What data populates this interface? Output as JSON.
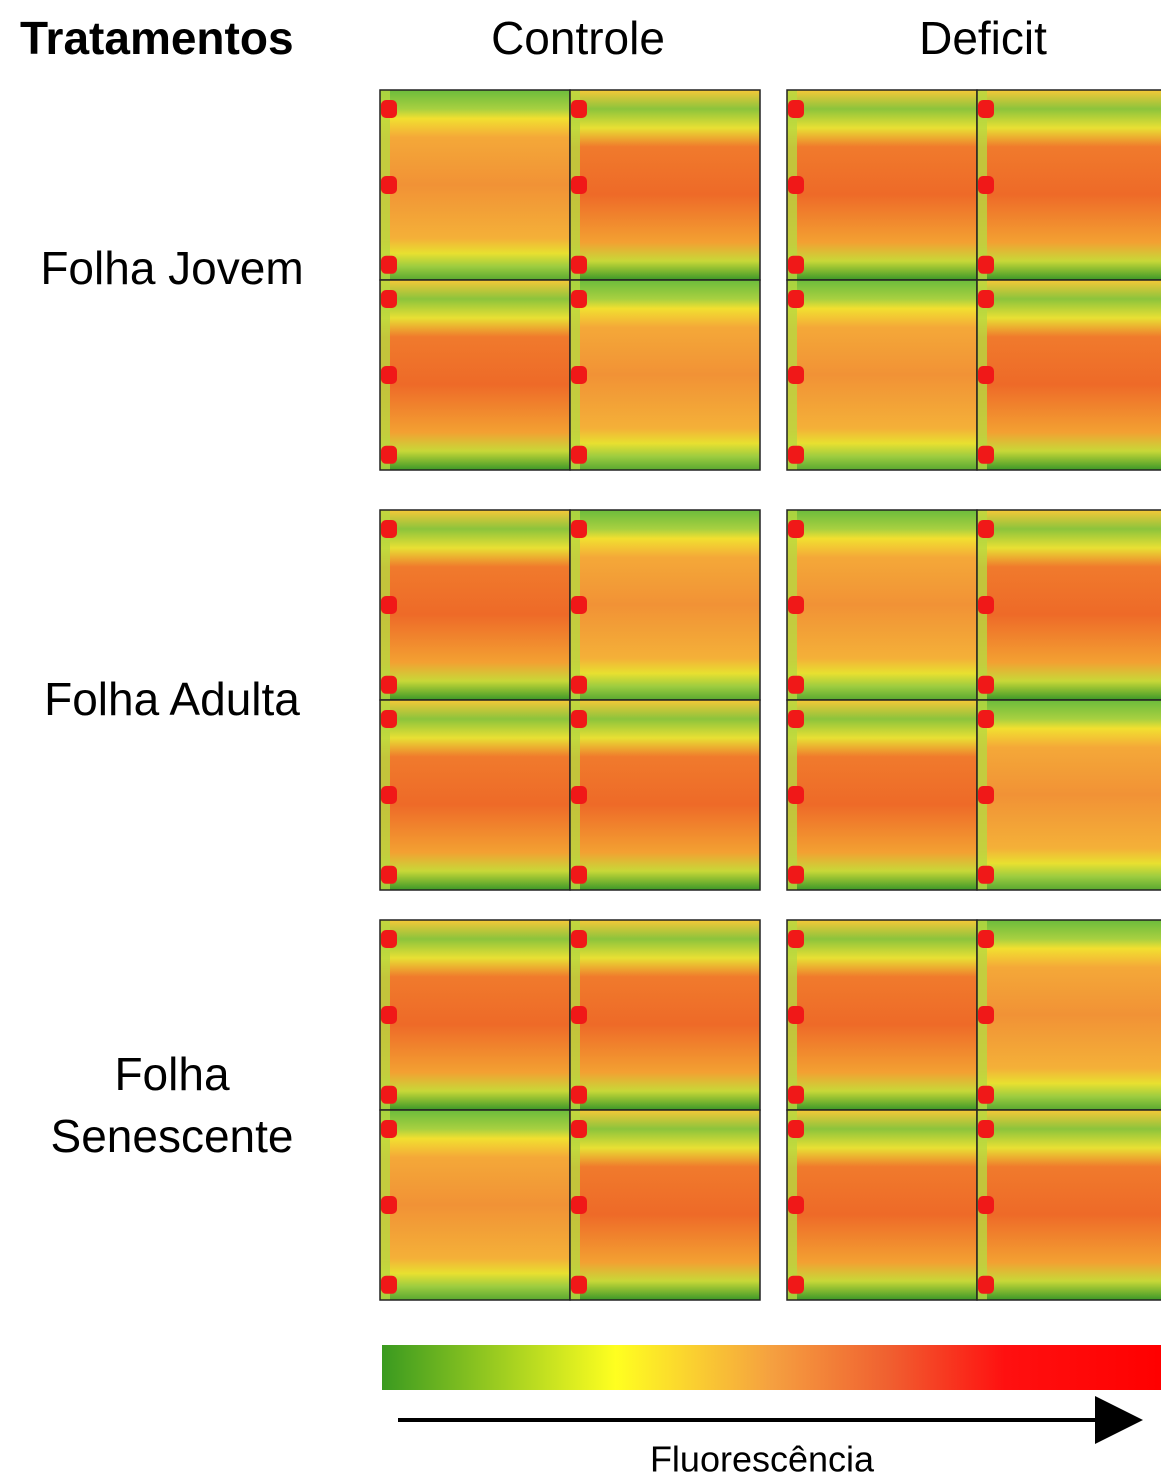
{
  "header": {
    "title": "Tratamentos",
    "columns": [
      "Controle",
      "Deficit"
    ]
  },
  "rows": [
    {
      "label": [
        "Folha Jovem"
      ]
    },
    {
      "label": [
        "Folha Adulta"
      ]
    },
    {
      "label": [
        "Folha",
        "Senescente"
      ]
    }
  ],
  "colorbar": {
    "label": "Fluorescência"
  }
}
